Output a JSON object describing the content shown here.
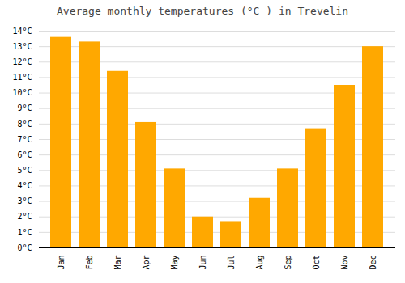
{
  "chart_data": {
    "type": "bar",
    "title": "Average monthly temperatures (°C ) in Trevelin",
    "categories": [
      "Jan",
      "Feb",
      "Mar",
      "Apr",
      "May",
      "Jun",
      "Jul",
      "Aug",
      "Sep",
      "Oct",
      "Nov",
      "Dec"
    ],
    "values": [
      13.6,
      13.3,
      11.4,
      8.1,
      5.1,
      2.0,
      1.7,
      3.2,
      5.1,
      7.7,
      10.5,
      13.0
    ],
    "color": "#FFA800",
    "ylim": [
      0,
      14
    ],
    "yticks": [
      {
        "value": 0,
        "label": "0°C"
      },
      {
        "value": 1,
        "label": "1°C"
      },
      {
        "value": 2,
        "label": "2°C"
      },
      {
        "value": 3,
        "label": "3°C"
      },
      {
        "value": 4,
        "label": "4°C"
      },
      {
        "value": 5,
        "label": "5°C"
      },
      {
        "value": 6,
        "label": "6°C"
      },
      {
        "value": 7,
        "label": "7°C"
      },
      {
        "value": 8,
        "label": "8°C"
      },
      {
        "value": 9,
        "label": "9°C"
      },
      {
        "value": 10,
        "label": "10°C"
      },
      {
        "value": 11,
        "label": "11°C"
      },
      {
        "value": 12,
        "label": "12°C"
      },
      {
        "value": 13,
        "label": "13°C"
      },
      {
        "value": 14,
        "label": "14°C"
      }
    ],
    "grid": true
  }
}
